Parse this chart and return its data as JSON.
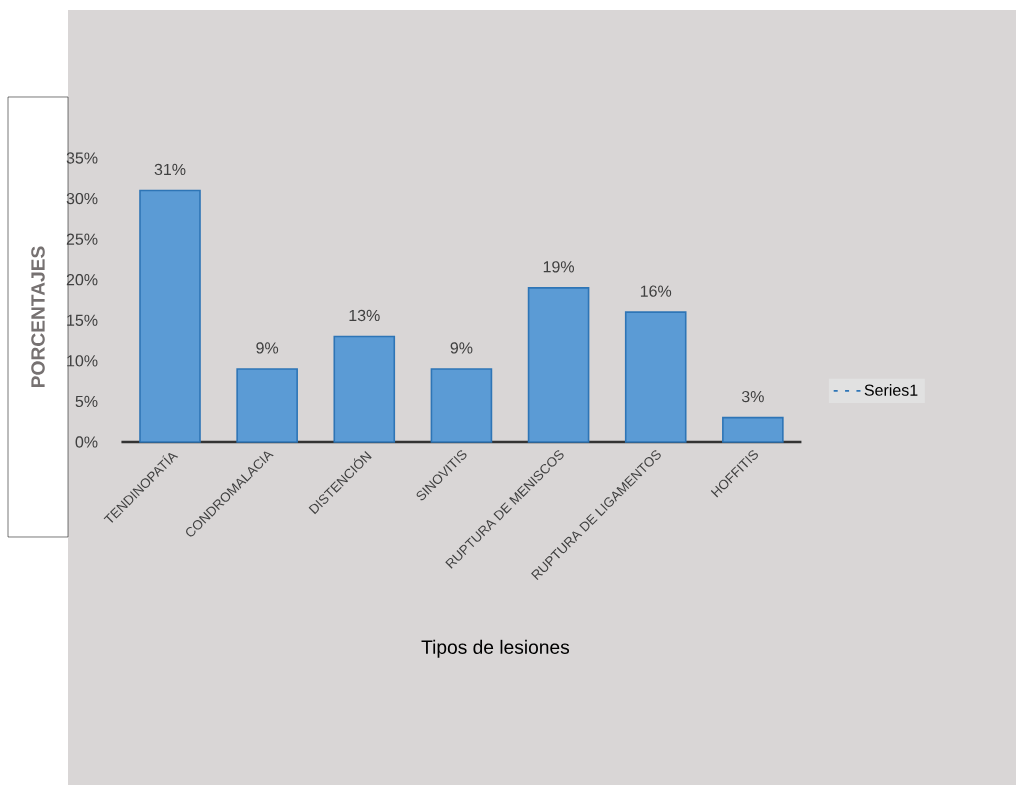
{
  "chart_data": {
    "type": "bar",
    "xlabel": "Tipos de lesiones",
    "ylabel": "PORCENTAJES",
    "categories": [
      "TENDINOPATÍA",
      "CONDROMALACIA",
      "DISTENCIÓN",
      "SINOVITIS",
      "RUPTURA DE MENISCOS",
      "RUPTURA DE LIGAMENTOS",
      "HOFFITIS"
    ],
    "series": [
      {
        "name": "Series1",
        "color": "#5b9bd5",
        "values": [
          31,
          9,
          13,
          9,
          19,
          16,
          3
        ],
        "value_labels": [
          "31%",
          "9%",
          "13%",
          "9%",
          "19%",
          "16%",
          "3%"
        ]
      }
    ],
    "ylim": [
      0,
      35
    ],
    "yticks": [
      {
        "value": 0,
        "label": "0%"
      },
      {
        "value": 5,
        "label": "5%"
      },
      {
        "value": 10,
        "label": "10%"
      },
      {
        "value": 15,
        "label": "15%"
      },
      {
        "value": 20,
        "label": "20%"
      },
      {
        "value": 25,
        "label": "25%"
      },
      {
        "value": 30,
        "label": "30%"
      },
      {
        "value": 35,
        "label": "35%"
      }
    ],
    "grid": false,
    "legend": "right"
  }
}
